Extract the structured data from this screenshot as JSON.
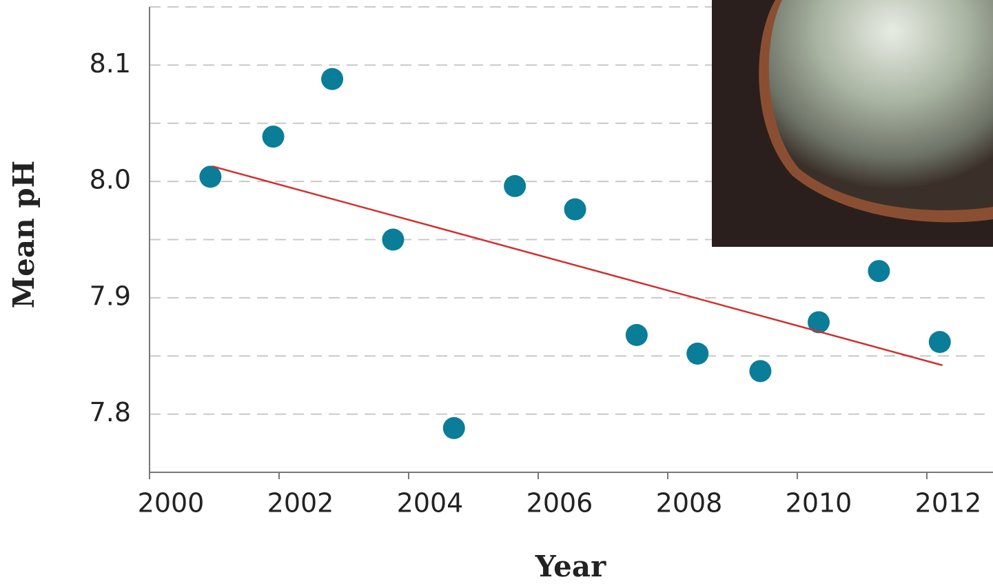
{
  "chart_data": {
    "type": "scatter",
    "x_label": "Year",
    "y_label": "Mean pH",
    "x": [
      2000.94,
      2001.91,
      2002.82,
      2003.76,
      2004.7,
      2005.64,
      2006.57,
      2007.52,
      2008.46,
      2009.43,
      2010.33,
      2011.26,
      2012.2
    ],
    "values": [
      8.004,
      8.0385,
      8.088,
      7.95,
      7.788,
      7.996,
      7.976,
      7.868,
      7.852,
      7.837,
      7.879,
      7.923,
      7.862
    ],
    "color": "#0a7d99",
    "trend": {
      "x": [
        2000.97,
        2012.24
      ],
      "values": [
        8.013,
        7.842
      ],
      "color": "#d0312d"
    },
    "xlim": [
      2000,
      2013
    ],
    "xticks": [
      2000,
      2002,
      2004,
      2006,
      2008,
      2010,
      2012
    ],
    "ylim": [
      7.75,
      8.15
    ],
    "yticks": [
      7.8,
      7.9,
      {
        "value": 8,
        "label": "8.0"
      },
      8.1
    ],
    "minor_grid": [
      7.85,
      7.95,
      8.05,
      8.15
    ],
    "grid": true
  }
}
